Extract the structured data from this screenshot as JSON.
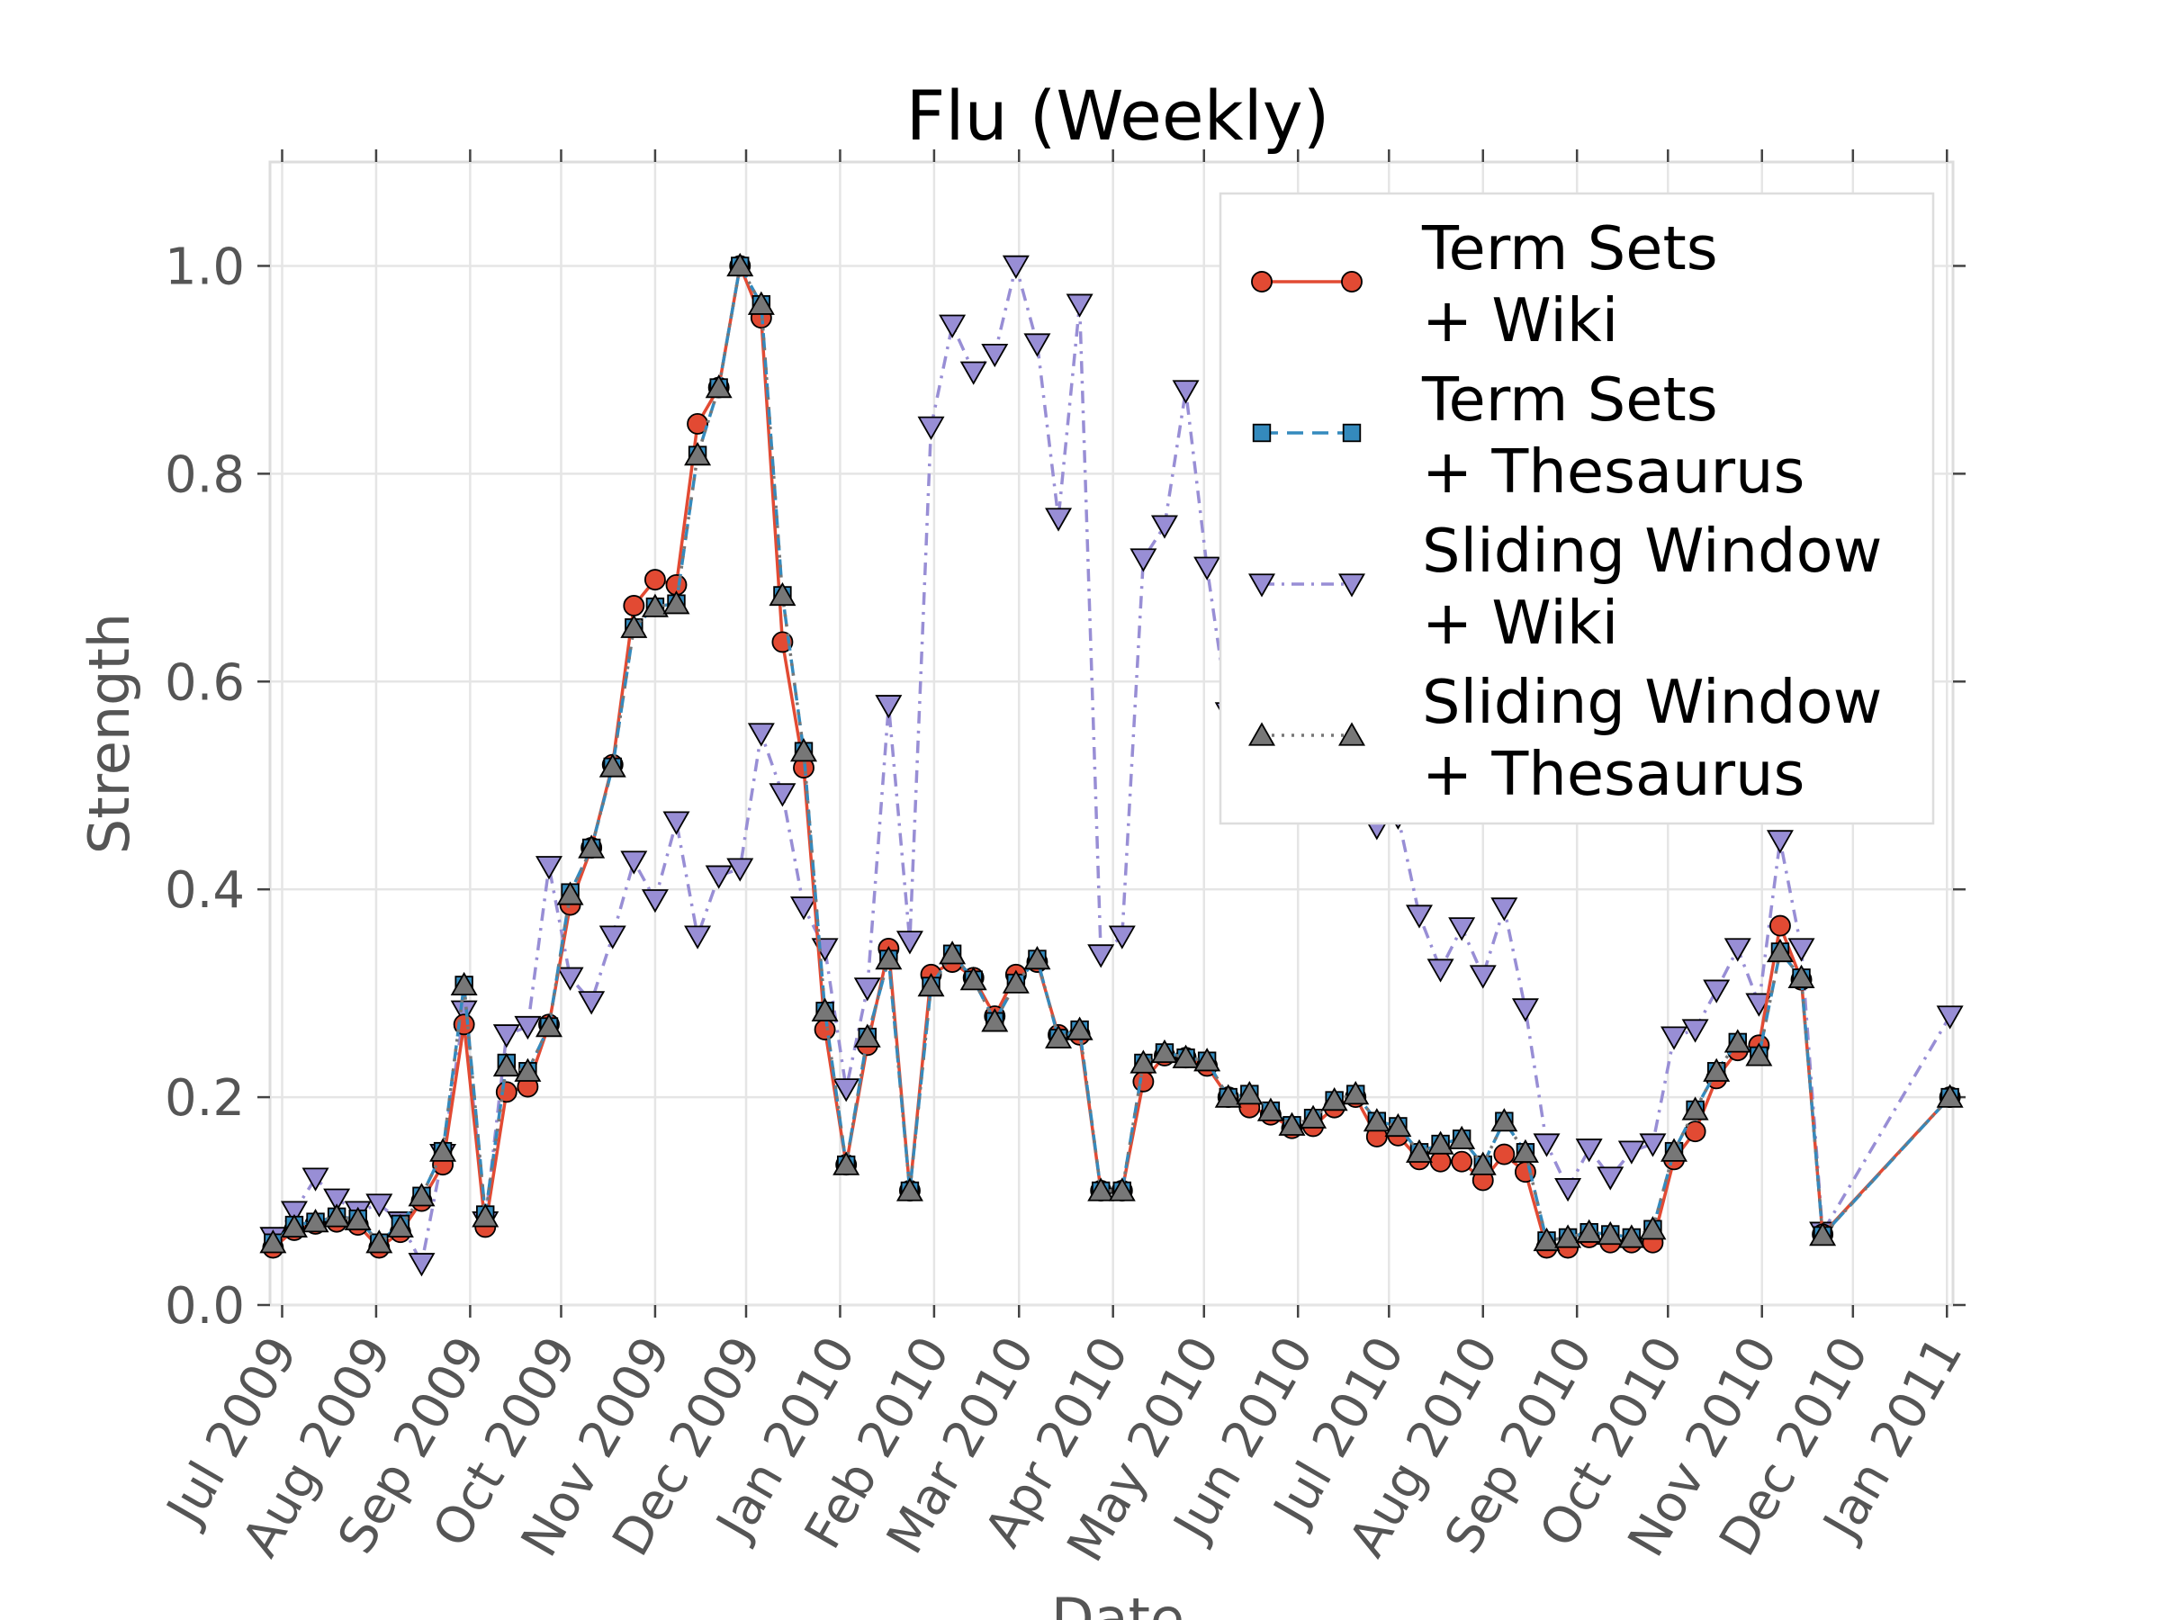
{
  "chart_data": {
    "type": "line",
    "title": "Flu (Weekly)",
    "xlabel": "Date",
    "ylabel": "Strength",
    "ylim": [
      0,
      1.1
    ],
    "xlim": [
      "2009-06-27",
      "2011-01-03"
    ],
    "grid": true,
    "legend_position": "top-right",
    "x_ticks": [
      "2009-07-01",
      "2009-08-01",
      "2009-09-01",
      "2009-10-01",
      "2009-11-01",
      "2009-12-01",
      "2010-01-01",
      "2010-02-01",
      "2010-03-01",
      "2010-04-01",
      "2010-05-01",
      "2010-06-01",
      "2010-07-01",
      "2010-08-01",
      "2010-09-01",
      "2010-10-01",
      "2010-11-01",
      "2010-12-01",
      "2011-01-01"
    ],
    "x_tick_labels": [
      "Jul 2009",
      "Aug 2009",
      "Sep 2009",
      "Oct 2009",
      "Nov 2009",
      "Dec 2009",
      "Jan 2010",
      "Feb 2010",
      "Mar 2010",
      "Apr 2010",
      "May 2010",
      "Jun 2010",
      "Jul 2010",
      "Aug 2010",
      "Sep 2010",
      "Oct 2010",
      "Nov 2010",
      "Dec 2010",
      "Jan 2011"
    ],
    "y_ticks": [
      0.0,
      0.2,
      0.4,
      0.6,
      0.8,
      1.0
    ],
    "y_tick_labels": [
      "0.0",
      "0.2",
      "0.4",
      "0.6",
      "0.8",
      "1.0"
    ],
    "dates": [
      "2009-06-28",
      "2009-07-05",
      "2009-07-12",
      "2009-07-19",
      "2009-07-26",
      "2009-08-02",
      "2009-08-09",
      "2009-08-16",
      "2009-08-23",
      "2009-08-30",
      "2009-09-06",
      "2009-09-13",
      "2009-09-20",
      "2009-09-27",
      "2009-10-04",
      "2009-10-11",
      "2009-10-18",
      "2009-10-25",
      "2009-11-01",
      "2009-11-08",
      "2009-11-15",
      "2009-11-22",
      "2009-11-29",
      "2009-12-06",
      "2009-12-13",
      "2009-12-20",
      "2009-12-27",
      "2010-01-03",
      "2010-01-10",
      "2010-01-17",
      "2010-01-24",
      "2010-01-31",
      "2010-02-07",
      "2010-02-14",
      "2010-02-21",
      "2010-02-28",
      "2010-03-07",
      "2010-03-14",
      "2010-03-21",
      "2010-03-28",
      "2010-04-04",
      "2010-04-11",
      "2010-04-18",
      "2010-04-25",
      "2010-05-02",
      "2010-05-09",
      "2010-05-16",
      "2010-05-23",
      "2010-05-30",
      "2010-06-06",
      "2010-06-13",
      "2010-06-20",
      "2010-06-27",
      "2010-07-04",
      "2010-07-11",
      "2010-07-18",
      "2010-07-25",
      "2010-08-01",
      "2010-08-08",
      "2010-08-15",
      "2010-08-22",
      "2010-08-29",
      "2010-09-05",
      "2010-09-12",
      "2010-09-19",
      "2010-09-26",
      "2010-10-03",
      "2010-10-10",
      "2010-10-17",
      "2010-10-24",
      "2010-10-31",
      "2010-11-07",
      "2010-11-14",
      "2010-11-21",
      "2011-01-02"
    ],
    "series": [
      {
        "name": "Term Sets + Wiki",
        "legend_lines": [
          "Term Sets",
          "+ Wiki"
        ],
        "color": "#E24A33",
        "marker": "circle",
        "linestyle": "solid",
        "values": [
          0.055,
          0.072,
          0.078,
          0.08,
          0.077,
          0.055,
          0.07,
          0.1,
          0.135,
          0.27,
          0.075,
          0.205,
          0.21,
          0.27,
          0.385,
          0.44,
          0.52,
          0.673,
          0.698,
          0.693,
          0.848,
          0.883,
          1.0,
          0.95,
          0.638,
          0.517,
          0.265,
          0.135,
          0.25,
          0.343,
          0.11,
          0.318,
          0.33,
          0.315,
          0.278,
          0.318,
          0.33,
          0.26,
          0.26,
          0.11,
          0.11,
          0.215,
          0.24,
          0.238,
          0.23,
          0.2,
          0.19,
          0.183,
          0.17,
          0.172,
          0.19,
          0.2,
          0.162,
          0.163,
          0.14,
          0.138,
          0.138,
          0.12,
          0.145,
          0.128,
          0.055,
          0.055,
          0.065,
          0.06,
          0.06,
          0.06,
          0.14,
          0.167,
          0.218,
          0.245,
          0.25,
          0.365,
          0.313,
          0.068,
          0.2
        ]
      },
      {
        "name": "Term Sets + Thesaurus",
        "legend_lines": [
          "Term Sets",
          "+ Thesaurus"
        ],
        "color": "#348ABD",
        "marker": "square",
        "linestyle": "dashed",
        "values": [
          0.06,
          0.077,
          0.08,
          0.085,
          0.083,
          0.06,
          0.078,
          0.105,
          0.148,
          0.308,
          0.087,
          0.233,
          0.225,
          0.268,
          0.397,
          0.44,
          0.518,
          0.652,
          0.672,
          0.675,
          0.818,
          0.883,
          1.0,
          0.963,
          0.683,
          0.533,
          0.283,
          0.135,
          0.258,
          0.333,
          0.11,
          0.307,
          0.338,
          0.313,
          0.273,
          0.31,
          0.333,
          0.257,
          0.265,
          0.11,
          0.11,
          0.233,
          0.243,
          0.238,
          0.235,
          0.2,
          0.203,
          0.187,
          0.173,
          0.18,
          0.197,
          0.203,
          0.177,
          0.172,
          0.147,
          0.155,
          0.16,
          0.135,
          0.177,
          0.147,
          0.062,
          0.065,
          0.07,
          0.068,
          0.065,
          0.073,
          0.148,
          0.188,
          0.225,
          0.253,
          0.24,
          0.34,
          0.315,
          0.067,
          0.2
        ]
      },
      {
        "name": "Sliding Window + Wiki",
        "legend_lines": [
          "Sliding Window",
          "+ Wiki"
        ],
        "color": "#988ED5",
        "marker": "triangle-down",
        "linestyle": "dashdot",
        "values": [
          0.065,
          0.09,
          0.122,
          0.102,
          0.09,
          0.097,
          0.08,
          0.04,
          0.145,
          0.283,
          0.08,
          0.26,
          0.268,
          0.422,
          0.315,
          0.292,
          0.355,
          0.427,
          0.39,
          0.465,
          0.355,
          0.413,
          0.42,
          0.55,
          0.492,
          0.383,
          0.343,
          0.208,
          0.305,
          0.577,
          0.35,
          0.845,
          0.943,
          0.898,
          0.915,
          1.0,
          0.925,
          0.757,
          0.963,
          0.337,
          0.355,
          0.718,
          0.75,
          0.88,
          0.71,
          0.57,
          0.56,
          0.53,
          0.52,
          0.5,
          0.5,
          0.5,
          0.46,
          0.47,
          0.375,
          0.323,
          0.363,
          0.317,
          0.382,
          0.285,
          0.155,
          0.112,
          0.15,
          0.123,
          0.148,
          0.155,
          0.258,
          0.265,
          0.303,
          0.343,
          0.29,
          0.447,
          0.343,
          0.07,
          0.278
        ]
      },
      {
        "name": "Sliding Window + Thesaurus",
        "legend_lines": [
          "Sliding Window",
          "+ Thesaurus"
        ],
        "color": "#777777",
        "marker": "triangle-up",
        "linestyle": "dotted",
        "values": [
          0.06,
          0.075,
          0.08,
          0.085,
          0.082,
          0.06,
          0.075,
          0.105,
          0.148,
          0.308,
          0.085,
          0.23,
          0.225,
          0.268,
          0.395,
          0.44,
          0.518,
          0.652,
          0.672,
          0.675,
          0.818,
          0.883,
          1.0,
          0.963,
          0.683,
          0.533,
          0.283,
          0.135,
          0.258,
          0.333,
          0.11,
          0.307,
          0.338,
          0.313,
          0.273,
          0.31,
          0.333,
          0.257,
          0.265,
          0.11,
          0.11,
          0.233,
          0.243,
          0.238,
          0.235,
          0.2,
          0.203,
          0.187,
          0.173,
          0.18,
          0.197,
          0.203,
          0.177,
          0.172,
          0.147,
          0.155,
          0.16,
          0.135,
          0.177,
          0.147,
          0.062,
          0.065,
          0.07,
          0.068,
          0.065,
          0.073,
          0.148,
          0.188,
          0.225,
          0.253,
          0.24,
          0.34,
          0.315,
          0.067,
          0.2
        ]
      }
    ]
  }
}
